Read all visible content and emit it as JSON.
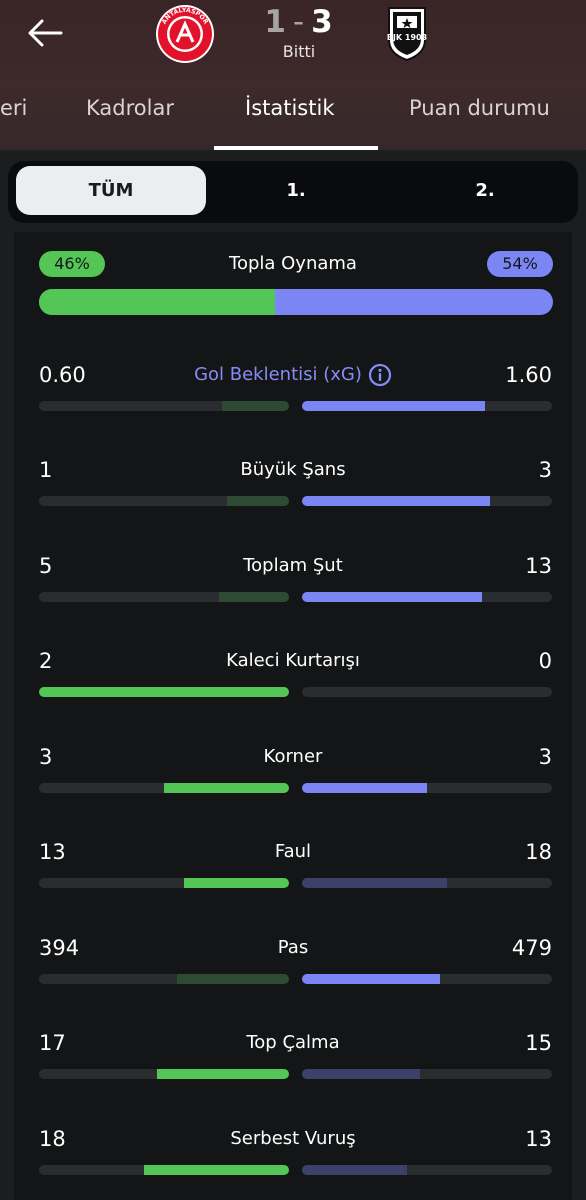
{
  "header": {
    "score_home": "1",
    "score_sep": "-",
    "score_away": "3",
    "status": "Bitti",
    "home_crest_text": "ANTALYASPOR",
    "away_crest_text": "BJK 1903",
    "tabs": [
      {
        "label": "eri",
        "active": false
      },
      {
        "label": "Kadrolar",
        "active": false
      },
      {
        "label": "İstatistik",
        "active": true
      },
      {
        "label": "Puan durumu",
        "active": false
      }
    ]
  },
  "segments": [
    {
      "label": "TÜM",
      "active": true
    },
    {
      "label": "1.",
      "active": false
    },
    {
      "label": "2.",
      "active": false
    }
  ],
  "colors": {
    "home_strong": "#53c656",
    "home_weak": "#2f4a33",
    "away_strong": "#7b86f4",
    "away_weak": "#3d416a"
  },
  "possession": {
    "label": "Topla Oynama",
    "home": "46%",
    "away": "54%",
    "home_fraction": 0.46
  },
  "stats": [
    {
      "label": "Gol Beklentisi (xG)",
      "home": "0.60",
      "away": "1.60",
      "home_frac": 0.27,
      "away_frac": 0.73,
      "home_strong": false,
      "away_strong": true,
      "info": true
    },
    {
      "label": "Büyük Şans",
      "home": "1",
      "away": "3",
      "home_frac": 0.25,
      "away_frac": 0.75,
      "home_strong": false,
      "away_strong": true
    },
    {
      "label": "Toplam Şut",
      "home": "5",
      "away": "13",
      "home_frac": 0.28,
      "away_frac": 0.72,
      "home_strong": false,
      "away_strong": true
    },
    {
      "label": "Kaleci Kurtarışı",
      "home": "2",
      "away": "0",
      "home_frac": 1.0,
      "away_frac": 0.0,
      "home_strong": true,
      "away_strong": false
    },
    {
      "label": "Korner",
      "home": "3",
      "away": "3",
      "home_frac": 0.5,
      "away_frac": 0.5,
      "home_strong": true,
      "away_strong": true
    },
    {
      "label": "Faul",
      "home": "13",
      "away": "18",
      "home_frac": 0.42,
      "away_frac": 0.58,
      "home_strong": true,
      "away_strong": false
    },
    {
      "label": "Pas",
      "home": "394",
      "away": "479",
      "home_frac": 0.45,
      "away_frac": 0.55,
      "home_strong": false,
      "away_strong": true
    },
    {
      "label": "Top Çalma",
      "home": "17",
      "away": "15",
      "home_frac": 0.53,
      "away_frac": 0.47,
      "home_strong": true,
      "away_strong": false
    },
    {
      "label": "Serbest Vuruş",
      "home": "18",
      "away": "13",
      "home_frac": 0.58,
      "away_frac": 0.42,
      "home_strong": true,
      "away_strong": false
    }
  ]
}
